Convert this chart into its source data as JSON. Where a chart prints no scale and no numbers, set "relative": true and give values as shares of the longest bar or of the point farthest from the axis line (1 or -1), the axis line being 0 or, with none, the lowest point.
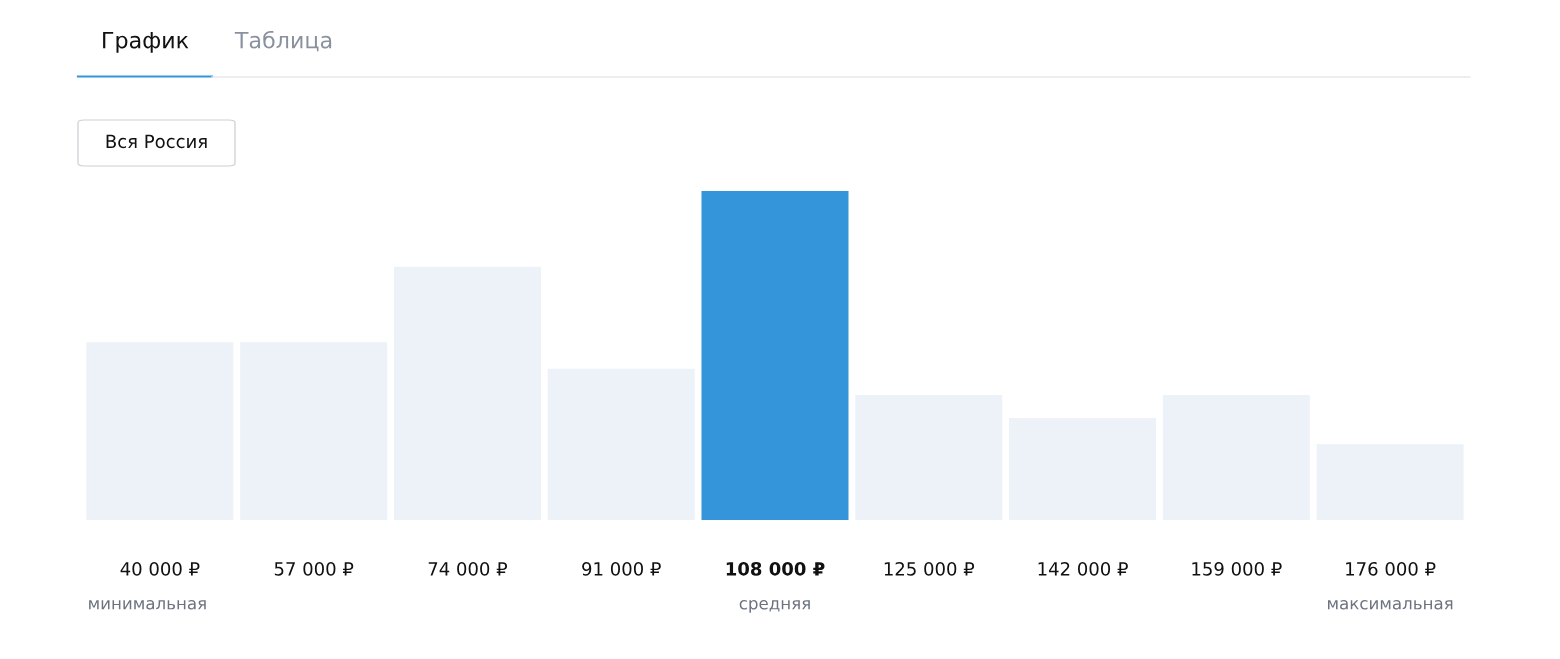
{
  "chart_data": {
    "type": "bar",
    "categories": [
      "40 000 ₽",
      "57 000 ₽",
      "74 000 ₽",
      "91 000 ₽",
      "108 000 ₽",
      "125 000 ₽",
      "142 000 ₽",
      "159 000 ₽",
      "176 000 ₽"
    ],
    "values": [
      0.54,
      0.54,
      0.77,
      0.46,
      1,
      0.38,
      0.31,
      0.38,
      0.23
    ],
    "colors": [
      "#edf1f8",
      "#edf1f8",
      "#edf1f8",
      "#edf1f8",
      "#3595da",
      "#edf1f8",
      "#edf1f8",
      "#edf1f8",
      "#edf1f8"
    ],
    "relative": true,
    "grid": false,
    "legend": false,
    "annotations": [
      "График",
      "Таблица",
      "Вся Россия",
      "минимальная",
      "средняя",
      "максимальная"
    ]
  }
}
